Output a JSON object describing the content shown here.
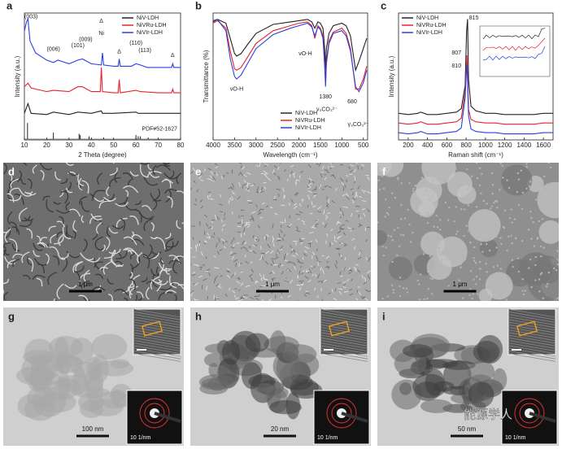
{
  "chart_data": [
    {
      "type": "line",
      "panel": "a",
      "xlabel": "2 Theta (degree)",
      "ylabel": "Intensity (a.u.)",
      "xlim": [
        10,
        80
      ],
      "xticks": [
        10,
        20,
        30,
        40,
        50,
        60,
        70,
        80
      ],
      "ylim": [
        0,
        105
      ],
      "legend": "top-right",
      "series": [
        {
          "name": "NiV-LDH",
          "color": "#222222",
          "x": [
            10,
            11.6,
            13,
            20,
            23,
            30,
            34,
            40,
            44.5,
            45,
            50,
            60,
            61,
            70,
            80
          ],
          "values": [
            22,
            30,
            22,
            21,
            23,
            21,
            23,
            22,
            24,
            22,
            22,
            23,
            22,
            22,
            22
          ]
        },
        {
          "name": "NiVRu-LDH",
          "color": "#e8232a",
          "x": [
            10,
            11.6,
            13,
            20,
            23,
            30,
            34,
            36,
            40,
            44,
            44.5,
            45,
            50,
            52,
            52.5,
            53,
            60,
            62,
            70,
            76,
            76.5,
            77,
            80
          ],
          "values": [
            44,
            47,
            43,
            40,
            41,
            40,
            44,
            44,
            40,
            40,
            60,
            40,
            39,
            39,
            50,
            39,
            41,
            40,
            39,
            39,
            42,
            39,
            39
          ]
        },
        {
          "name": "NiVIr-LDH",
          "color": "#2b3fe0",
          "x": [
            10,
            11,
            11.6,
            12.5,
            15,
            20,
            23,
            25,
            30,
            34,
            36,
            40,
            44.5,
            45,
            45.5,
            50,
            52,
            52.5,
            53,
            58,
            60,
            62,
            65,
            70,
            76,
            76.5,
            77,
            80
          ],
          "values": [
            90,
            98,
            100,
            82,
            72,
            66,
            64,
            66,
            63,
            66,
            67,
            63,
            62,
            72,
            62,
            61,
            61,
            67,
            61,
            61,
            63,
            62,
            60,
            60,
            60,
            63,
            60,
            60
          ]
        }
      ],
      "reference": {
        "label": "PDF#52-1627",
        "x": [
          11.4,
          23,
          34.5,
          35,
          39,
          45.5,
          60,
          61,
          62,
          65.5
        ],
        "values": [
          14,
          6,
          5,
          4,
          3,
          2,
          4,
          3,
          3,
          2
        ]
      },
      "annotations": [
        {
          "text": "(003)",
          "x": 13,
          "y": 102
        },
        {
          "text": "(006)",
          "x": 23,
          "y": 75
        },
        {
          "text": "(101)",
          "x": 34,
          "y": 78
        },
        {
          "text": "(009)",
          "x": 37.5,
          "y": 83
        },
        {
          "text": "Ni",
          "x": 44.5,
          "y": 88
        },
        {
          "text": "Δ",
          "x": 44.5,
          "y": 98
        },
        {
          "text": "Δ",
          "x": 52.5,
          "y": 73
        },
        {
          "text": "(110)",
          "x": 60,
          "y": 80
        },
        {
          "text": "(113)",
          "x": 64,
          "y": 74
        },
        {
          "text": "Δ",
          "x": 76.5,
          "y": 70
        }
      ]
    },
    {
      "type": "line",
      "panel": "b",
      "xlabel": "Wavelength (cm⁻¹)",
      "ylabel": "Transmittance (%)",
      "xlim": [
        4000,
        400
      ],
      "xticks": [
        4000,
        3500,
        3000,
        2500,
        2000,
        1500,
        1000,
        500
      ],
      "ylim": [
        0,
        100
      ],
      "legend": "bottom-center",
      "series": [
        {
          "name": "NiV-LDH",
          "color": "#222222",
          "x": [
            4000,
            3900,
            3700,
            3600,
            3500,
            3450,
            3350,
            3200,
            3000,
            2600,
            2200,
            2000,
            1800,
            1700,
            1630,
            1560,
            1500,
            1440,
            1400,
            1380,
            1360,
            1300,
            1200,
            1000,
            900,
            800,
            680,
            600,
            500,
            420
          ],
          "values": [
            93,
            95,
            92,
            80,
            68,
            66,
            68,
            75,
            84,
            91,
            93,
            94,
            95,
            93,
            88,
            93,
            92,
            88,
            72,
            55,
            72,
            84,
            90,
            92,
            90,
            82,
            55,
            62,
            72,
            80
          ]
        },
        {
          "name": "NiVRu-LDH",
          "color": "#e8232a",
          "x": [
            4000,
            3900,
            3700,
            3600,
            3500,
            3450,
            3350,
            3200,
            3000,
            2600,
            2200,
            2000,
            1800,
            1700,
            1630,
            1560,
            1500,
            1440,
            1400,
            1380,
            1360,
            1300,
            1200,
            1000,
            900,
            800,
            680,
            600,
            500,
            420
          ],
          "values": [
            92,
            94,
            88,
            70,
            56,
            55,
            57,
            65,
            76,
            86,
            90,
            92,
            93,
            90,
            80,
            90,
            88,
            82,
            62,
            45,
            62,
            78,
            85,
            88,
            84,
            72,
            40,
            40,
            48,
            58
          ]
        },
        {
          "name": "NiVIr-LDH",
          "color": "#2b3fe0",
          "x": [
            4000,
            3900,
            3700,
            3600,
            3500,
            3450,
            3350,
            3200,
            3000,
            2600,
            2200,
            2000,
            1800,
            1700,
            1630,
            1560,
            1500,
            1440,
            1400,
            1380,
            1360,
            1300,
            1200,
            1000,
            900,
            800,
            680,
            600,
            500,
            420
          ],
          "values": [
            94,
            95,
            86,
            64,
            50,
            48,
            51,
            60,
            72,
            83,
            88,
            90,
            92,
            89,
            82,
            89,
            87,
            80,
            58,
            42,
            60,
            76,
            84,
            86,
            82,
            70,
            42,
            38,
            45,
            55
          ]
        }
      ],
      "annotations": [
        {
          "text": "νO-H",
          "x": 3450,
          "y": 40
        },
        {
          "text": "νO-H",
          "x": 1850,
          "y": 68
        },
        {
          "text": "1380",
          "x": 1380,
          "y": 34
        },
        {
          "text": "ν₃CO₃²⁻",
          "x": 1350,
          "y": 24
        },
        {
          "text": "680",
          "x": 760,
          "y": 30
        },
        {
          "text": "γ₃CO₃²⁻",
          "x": 620,
          "y": 12
        }
      ]
    },
    {
      "type": "line",
      "panel": "c",
      "xlabel": "Raman shift (cm⁻¹)",
      "ylabel": "Intensity (a.u.)",
      "xlim": [
        100,
        1700
      ],
      "xticks": [
        200,
        400,
        600,
        800,
        1000,
        1200,
        1400,
        1600
      ],
      "ylim": [
        0,
        105
      ],
      "legend": "top-left",
      "series": [
        {
          "name": "NiV-LDH",
          "color": "#222222",
          "x": [
            100,
            200,
            300,
            330,
            400,
            500,
            600,
            700,
            750,
            790,
            805,
            815,
            825,
            850,
            900,
            1000,
            1100,
            1200,
            1300,
            1400,
            1500,
            1600,
            1700
          ],
          "values": [
            22,
            21,
            22,
            23,
            21,
            21,
            22,
            23,
            26,
            45,
            90,
            100,
            50,
            28,
            24,
            22,
            22,
            21,
            21,
            21,
            21,
            22,
            22
          ]
        },
        {
          "name": "NiVRu-LDH",
          "color": "#e8232a",
          "x": [
            100,
            200,
            300,
            330,
            400,
            500,
            600,
            700,
            750,
            790,
            807,
            815,
            825,
            850,
            900,
            1000,
            1100,
            1200,
            1300,
            1400,
            1500,
            1600,
            1700
          ],
          "values": [
            14,
            13,
            14,
            15,
            13,
            13,
            14,
            15,
            18,
            40,
            70,
            55,
            25,
            17,
            15,
            14,
            14,
            13,
            13,
            13,
            13,
            14,
            14
          ]
        },
        {
          "name": "NiVIr-LDH",
          "color": "#2b3fe0",
          "x": [
            100,
            200,
            300,
            330,
            400,
            500,
            600,
            700,
            750,
            790,
            805,
            810,
            825,
            850,
            900,
            1000,
            1100,
            1200,
            1300,
            1400,
            1500,
            1600,
            1700
          ],
          "values": [
            6,
            5,
            6,
            7,
            5,
            5,
            6,
            7,
            10,
            35,
            60,
            62,
            20,
            9,
            7,
            6,
            6,
            5,
            5,
            5,
            5,
            6,
            6
          ]
        }
      ],
      "annotations": [
        {
          "text": "815",
          "x": 880,
          "y": 101
        },
        {
          "text": "807",
          "x": 700,
          "y": 72
        },
        {
          "text": "810",
          "x": 700,
          "y": 61
        }
      ]
    }
  ],
  "micrographs": [
    {
      "panel": "d",
      "kind": "sem-dense",
      "scale_bar": "1 μm"
    },
    {
      "panel": "e",
      "kind": "sem-fine",
      "scale_bar": "1 μm"
    },
    {
      "panel": "f",
      "kind": "sem-blob",
      "scale_bar": "1 μm"
    },
    {
      "panel": "g",
      "kind": "tem",
      "scale_bar": "100 nm",
      "saed": "10 1/nm"
    },
    {
      "panel": "h",
      "kind": "tem",
      "scale_bar": "20 nm",
      "saed": "10 1/nm"
    },
    {
      "panel": "i",
      "kind": "tem",
      "scale_bar": "50 nm",
      "saed": "10 1/nm"
    }
  ],
  "watermark": "能源学人"
}
